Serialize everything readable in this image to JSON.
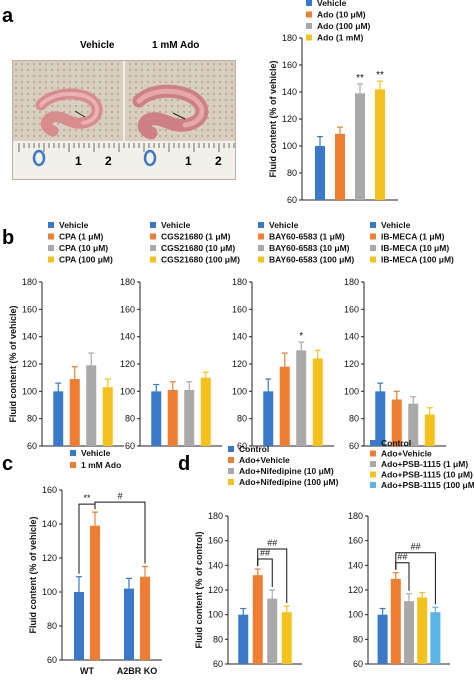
{
  "panel_labels": {
    "a": "a",
    "b": "b",
    "c": "c",
    "d": "d"
  },
  "photo": {
    "label_left": "Vehicle",
    "label_right": "1 mM Ado",
    "ruler_marks": [
      "1",
      "2",
      "1",
      "2"
    ]
  },
  "colors": {
    "vehicle": "#3a78c9",
    "orange": "#ef7d32",
    "gray": "#a9a9a9",
    "yellow": "#f4c21c",
    "lightblue": "#5ab4e6"
  },
  "chart_data": [
    {
      "id": "a",
      "type": "bar",
      "ylabel": "Fluid content (% of vehicle)",
      "ylim": [
        60,
        180
      ],
      "yticks": [
        60,
        80,
        100,
        120,
        140,
        160,
        180
      ],
      "legend_position": "top",
      "series": [
        {
          "name": "Vehicle",
          "value": 100,
          "error": 7,
          "color": "#3a78c9"
        },
        {
          "name": "Ado (10 μM)",
          "value": 109,
          "error": 5,
          "color": "#ef7d32"
        },
        {
          "name": "Ado (100 μM)",
          "value": 139,
          "error": 7,
          "color": "#a9a9a9",
          "annotation": "**"
        },
        {
          "name": "Ado (1 mM)",
          "value": 142,
          "error": 6,
          "color": "#f4c21c",
          "annotation": "**"
        }
      ]
    },
    {
      "id": "b1",
      "type": "bar",
      "ylabel": "Fluid content (% of vehicle)",
      "ylim": [
        60,
        180
      ],
      "yticks": [
        60,
        80,
        100,
        120,
        140,
        160,
        180
      ],
      "legend_position": "top",
      "series": [
        {
          "name": "Vehicle",
          "value": 100,
          "error": 6,
          "color": "#3a78c9"
        },
        {
          "name": "CPA (1 μM)",
          "value": 109,
          "error": 9,
          "color": "#ef7d32"
        },
        {
          "name": "CPA (10 μM)",
          "value": 119,
          "error": 9,
          "color": "#a9a9a9"
        },
        {
          "name": "CPA (100 μM)",
          "value": 103,
          "error": 6,
          "color": "#f4c21c"
        }
      ]
    },
    {
      "id": "b2",
      "type": "bar",
      "ylim": [
        60,
        180
      ],
      "yticks": [
        60,
        80,
        100,
        120,
        140,
        160,
        180
      ],
      "legend_position": "top",
      "series": [
        {
          "name": "Vehicle",
          "value": 100,
          "error": 5,
          "color": "#3a78c9"
        },
        {
          "name": "CGS21680 (1 μM)",
          "value": 101,
          "error": 6,
          "color": "#ef7d32"
        },
        {
          "name": "CGS21680 (10 μM)",
          "value": 101,
          "error": 6,
          "color": "#a9a9a9"
        },
        {
          "name": "CGS21680 (100 μM)",
          "value": 110,
          "error": 4,
          "color": "#f4c21c"
        }
      ]
    },
    {
      "id": "b3",
      "type": "bar",
      "ylim": [
        60,
        180
      ],
      "yticks": [
        60,
        80,
        100,
        120,
        140,
        160,
        180
      ],
      "legend_position": "top",
      "series": [
        {
          "name": "Vehicle",
          "value": 100,
          "error": 9,
          "color": "#3a78c9"
        },
        {
          "name": "BAY60-6583 (1 μM)",
          "value": 118,
          "error": 10,
          "color": "#ef7d32"
        },
        {
          "name": "BAY60-6583 (10 μM)",
          "value": 130,
          "error": 6,
          "color": "#a9a9a9",
          "annotation": "*"
        },
        {
          "name": "BAY60-6583 (100 μM)",
          "value": 124,
          "error": 6,
          "color": "#f4c21c"
        }
      ]
    },
    {
      "id": "b4",
      "type": "bar",
      "ylim": [
        60,
        180
      ],
      "yticks": [
        60,
        80,
        100,
        120,
        140,
        160,
        180
      ],
      "legend_position": "top",
      "series": [
        {
          "name": "Vehicle",
          "value": 100,
          "error": 6,
          "color": "#3a78c9"
        },
        {
          "name": "IB-MECA (1 μM)",
          "value": 94,
          "error": 6,
          "color": "#ef7d32"
        },
        {
          "name": "IB-MECA (10 μM)",
          "value": 91,
          "error": 5,
          "color": "#a9a9a9"
        },
        {
          "name": "IB-MECA (100 μM)",
          "value": 83,
          "error": 5,
          "color": "#f4c21c"
        }
      ]
    },
    {
      "id": "c",
      "type": "bar",
      "ylabel": "Fluid content (% of vehicle)",
      "ylim": [
        60,
        160
      ],
      "yticks": [
        60,
        80,
        100,
        120,
        140,
        160
      ],
      "categories": [
        "WT",
        "A2BR KO"
      ],
      "legend_position": "top",
      "series": [
        {
          "name": "Vehicle",
          "values": [
            100,
            102
          ],
          "errors": [
            9,
            6
          ],
          "color": "#3a78c9"
        },
        {
          "name": "1 mM Ado",
          "values": [
            139,
            109
          ],
          "errors": [
            8,
            6
          ],
          "color": "#ef7d32"
        }
      ],
      "brackets": [
        {
          "label": "**",
          "between": [
            [
              0,
              0
            ],
            [
              0,
              1
            ]
          ]
        },
        {
          "label": "#",
          "between": [
            [
              0,
              1
            ],
            [
              1,
              1
            ]
          ]
        }
      ]
    },
    {
      "id": "d1",
      "type": "bar",
      "ylabel": "Fluid content (% of control)",
      "ylim": [
        60,
        180
      ],
      "yticks": [
        60,
        80,
        100,
        120,
        140,
        160,
        180
      ],
      "legend_position": "top",
      "series": [
        {
          "name": "Control",
          "value": 100,
          "error": 5,
          "color": "#3a78c9"
        },
        {
          "name": "Ado+Vehicle",
          "value": 132,
          "error": 5,
          "color": "#ef7d32"
        },
        {
          "name": "Ado+Nifedipine (10 μM)",
          "value": 113,
          "error": 7,
          "color": "#a9a9a9"
        },
        {
          "name": "Ado+Nifedipine (100 μM)",
          "value": 102,
          "error": 5,
          "color": "#f4c21c"
        }
      ],
      "brackets": [
        {
          "label": "##",
          "between": [
            1,
            2
          ]
        },
        {
          "label": "##",
          "between": [
            1,
            3
          ]
        }
      ]
    },
    {
      "id": "d2",
      "type": "bar",
      "ylim": [
        60,
        180
      ],
      "yticks": [
        60,
        80,
        100,
        120,
        140,
        160,
        180
      ],
      "legend_position": "top",
      "series": [
        {
          "name": "Control",
          "value": 100,
          "error": 5,
          "color": "#3a78c9"
        },
        {
          "name": "Ado+Vehicle",
          "value": 129,
          "error": 5,
          "color": "#ef7d32"
        },
        {
          "name": "Ado+PSB-1115 (1 μM)",
          "value": 111,
          "error": 6,
          "color": "#a9a9a9"
        },
        {
          "name": "Ado+PSB-1115 (10 μM)",
          "value": 114,
          "error": 4,
          "color": "#f4c21c"
        },
        {
          "name": "Ado+PSB-1115 (100 μM)",
          "value": 102,
          "error": 4,
          "color": "#5ab4e6"
        }
      ],
      "brackets": [
        {
          "label": "##",
          "between": [
            1,
            2
          ]
        },
        {
          "label": "##",
          "between": [
            1,
            4
          ]
        }
      ]
    }
  ]
}
